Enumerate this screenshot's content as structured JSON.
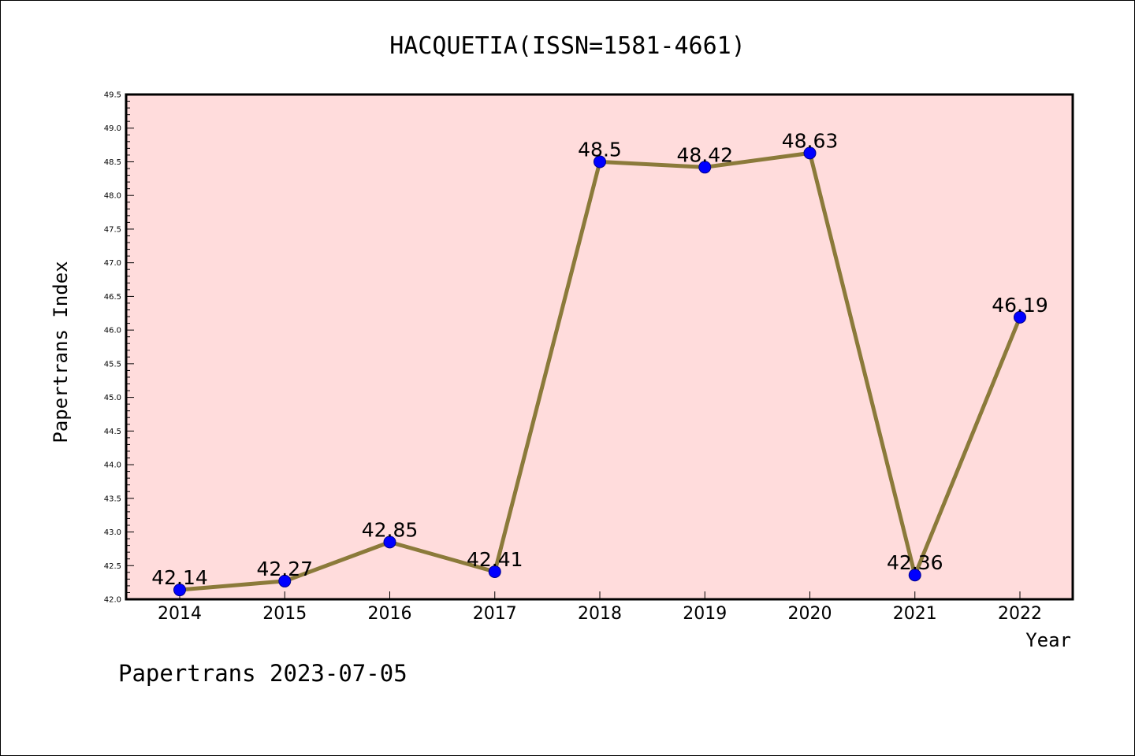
{
  "footer": "Papertrans 2023-07-05",
  "chart_data": {
    "type": "line",
    "title": "HACQUETIA(ISSN=1581-4661)",
    "xlabel": "Year",
    "ylabel": "Papertrans Index",
    "categories": [
      "2014",
      "2015",
      "2016",
      "2017",
      "2018",
      "2019",
      "2020",
      "2021",
      "2022"
    ],
    "values": [
      42.14,
      42.27,
      42.85,
      42.41,
      48.5,
      48.42,
      48.63,
      42.36,
      46.19
    ],
    "data_labels": [
      "42.14",
      "42.27",
      "42.85",
      "42.41",
      "48.5",
      "48.42",
      "48.63",
      "42.36",
      "46.19"
    ],
    "ylim": [
      42.0,
      49.5
    ],
    "yticks": [
      "42.0",
      "42.5",
      "43.0",
      "43.5",
      "44.0",
      "44.5",
      "45.0",
      "45.5",
      "46.0",
      "46.5",
      "47.0",
      "47.5",
      "48.0",
      "48.5",
      "49.0",
      "49.5"
    ],
    "grid": false,
    "legend": "none",
    "colors": {
      "plot_background": "#ffdcdc",
      "line": "#8b7a3a",
      "marker": "#0000ff",
      "marker_edge": "#00008b"
    }
  }
}
